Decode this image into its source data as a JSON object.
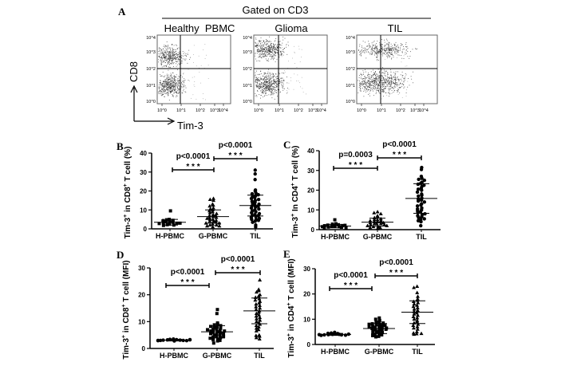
{
  "flow_panel": {
    "label": "A",
    "gate_title": "Gated on CD3",
    "plots": [
      {
        "title": "Healthy  PBMC"
      },
      {
        "title": "Glioma"
      },
      {
        "title": "TIL"
      }
    ],
    "y_axis_label": "CD8",
    "x_axis_label": "Tim-3",
    "tick_labels": [
      "10^0",
      "10^1",
      "10^2",
      "10^3",
      "10^4"
    ]
  },
  "chart_data": [
    {
      "panel": "B",
      "type": "scatter",
      "ylabel": "Tim-3+ in CD8+ T cell  (%)",
      "ylabel_parts": [
        "Tim-3",
        "+",
        " in CD8",
        "+",
        " T cell  (%)"
      ],
      "ylim": [
        0,
        40
      ],
      "yticks": [
        0,
        10,
        20,
        30,
        40
      ],
      "categories": [
        "H-PBMC",
        "G-PBMC",
        "TIL"
      ],
      "groups": [
        {
          "name": "H-PBMC",
          "marker": "square",
          "mean": 3.5,
          "sd": 1.5,
          "values": [
            9.5,
            5,
            4.8,
            4.5,
            4,
            3.8,
            3.5,
            3.2,
            3,
            2.8,
            2.5,
            2.2,
            2,
            1.8,
            3,
            4.2
          ]
        },
        {
          "name": "G-PBMC",
          "marker": "triangle",
          "mean": 6.5,
          "sd": 3.5,
          "values": [
            16,
            15.5,
            15,
            13,
            12.5,
            12,
            11,
            10.5,
            10,
            9.5,
            9,
            8.5,
            8,
            7.5,
            7,
            7,
            6.5,
            6,
            6,
            5.5,
            5,
            5,
            4.5,
            4,
            4,
            3.5,
            3,
            3,
            2.5,
            2,
            2,
            1.5,
            1.5,
            1
          ]
        },
        {
          "name": "TIL",
          "marker": "circle",
          "mean": 12.3,
          "sd": 5.5,
          "values": [
            31,
            29,
            26,
            20.5,
            20,
            19,
            18.5,
            18,
            17.5,
            17,
            16.5,
            16,
            15.5,
            15,
            14.5,
            14,
            13.5,
            13,
            12.5,
            12,
            12,
            11.5,
            11,
            10.5,
            10,
            9.5,
            9,
            8.5,
            8,
            7.5,
            7,
            7,
            6.5,
            6,
            5.5,
            5,
            5,
            4.5,
            4,
            3.5,
            2,
            1
          ]
        }
      ],
      "comparisons": [
        {
          "from": "H-PBMC",
          "to": "G-PBMC",
          "p": "p<0.0001",
          "stars": "* * *"
        },
        {
          "from": "G-PBMC",
          "to": "TIL",
          "p": "p<0.0001",
          "stars": "* * *"
        }
      ]
    },
    {
      "panel": "C",
      "type": "scatter",
      "ylabel": "Tim-3+ In CD4+ T cell  (%)",
      "ylabel_parts": [
        "Tim-3",
        "+",
        " In CD4",
        "+",
        " T cell  (%)"
      ],
      "ylim": [
        0,
        40
      ],
      "yticks": [
        0,
        10,
        20,
        30,
        40
      ],
      "categories": [
        "H-PBMC",
        "G-PBMC",
        "TIL"
      ],
      "groups": [
        {
          "name": "H-PBMC",
          "marker": "square",
          "mean": 1.8,
          "sd": 0.9,
          "values": [
            5,
            3,
            2.8,
            2.5,
            2.3,
            2,
            2,
            1.8,
            1.6,
            1.5,
            1.3,
            1.2,
            1,
            0.8,
            1.5,
            2.2
          ]
        },
        {
          "name": "G-PBMC",
          "marker": "triangle",
          "mean": 3.8,
          "sd": 2,
          "values": [
            9,
            8.5,
            8,
            7,
            6.5,
            6,
            5.5,
            5,
            5,
            4.5,
            4.5,
            4,
            4,
            4,
            3.5,
            3.5,
            3,
            3,
            3,
            2.5,
            2.5,
            2,
            2,
            1.5,
            1.5,
            1,
            1,
            0.5
          ]
        },
        {
          "name": "TIL",
          "marker": "circle",
          "mean": 15.8,
          "sd": 7.5,
          "values": [
            31.5,
            30.5,
            27,
            26,
            25.5,
            25,
            24,
            23.5,
            23,
            22.5,
            22,
            21,
            20.5,
            20,
            19,
            18,
            17.5,
            17,
            16,
            15.5,
            15,
            14.5,
            14,
            13,
            12.5,
            12,
            11,
            10.5,
            10,
            9.5,
            9,
            8.5,
            8,
            7.5,
            7,
            6.5,
            6,
            5.5,
            5,
            4.5,
            4,
            2
          ]
        }
      ],
      "comparisons": [
        {
          "from": "H-PBMC",
          "to": "G-PBMC",
          "p": "p=0.0003",
          "stars": "* * *"
        },
        {
          "from": "G-PBMC",
          "to": "TIL",
          "p": "p<0.0001",
          "stars": "* * *"
        }
      ]
    },
    {
      "panel": "D",
      "type": "scatter",
      "ylabel": "Tim-3+ in CD8+ T cell  (MFI)",
      "ylabel_parts": [
        "Tim-3",
        "+",
        " in CD8",
        "+",
        " T cell  (MFI)"
      ],
      "ylim": [
        0,
        30
      ],
      "yticks": [
        0,
        10,
        20,
        30
      ],
      "categories": [
        "H-PBMC",
        "G-PBMC",
        "TIL"
      ],
      "groups": [
        {
          "name": "H-PBMC",
          "marker": "circle",
          "mean": 3.1,
          "sd": 0.3,
          "values": [
            3.5,
            3.4,
            3.3,
            3.2,
            3.1,
            3.1,
            3,
            3,
            2.9,
            2.9,
            2.8,
            3.2,
            3,
            3.3
          ]
        },
        {
          "name": "G-PBMC",
          "marker": "square",
          "mean": 6.2,
          "sd": 2.3,
          "values": [
            14.5,
            13,
            9.5,
            9,
            8.8,
            8.5,
            8.2,
            8,
            7.8,
            7.5,
            7.2,
            7,
            6.8,
            6.5,
            6.2,
            6,
            5.8,
            5.5,
            5.2,
            5,
            4.8,
            4.5,
            4.2,
            4,
            3.8,
            3.5,
            3.2,
            3,
            2.8,
            2,
            6.5,
            7,
            5.5,
            4.5
          ]
        },
        {
          "name": "TIL",
          "marker": "triangle",
          "mean": 14,
          "sd": 4.8,
          "values": [
            25.5,
            22,
            21.5,
            21,
            20,
            19.5,
            19,
            18.5,
            18,
            17.5,
            17,
            16.5,
            16,
            15.5,
            15,
            14.5,
            14,
            13.5,
            13,
            12.5,
            12,
            11.5,
            11,
            10.5,
            10,
            9.5,
            9,
            8.5,
            8,
            7.5,
            7,
            6.5,
            5,
            4.8,
            4.5,
            4,
            3.5
          ]
        }
      ],
      "comparisons": [
        {
          "from": "H-PBMC",
          "to": "G-PBMC",
          "p": "p<0.0001",
          "stars": "* * *"
        },
        {
          "from": "G-PBMC",
          "to": "TIL",
          "p": "p<0.0001",
          "stars": "* * *"
        }
      ]
    },
    {
      "panel": "E",
      "type": "scatter",
      "ylabel": "Tim-3+ in CD4+ T cell  (MFI)",
      "ylabel_parts": [
        "Tim-3",
        "+",
        " in CD4",
        "+",
        " T cell  (MFI)"
      ],
      "ylim": [
        0,
        30
      ],
      "yticks": [
        0,
        10,
        20,
        30
      ],
      "categories": [
        "H-PBMC",
        "G-PBMC",
        "TIL"
      ],
      "groups": [
        {
          "name": "H-PBMC",
          "marker": "circle",
          "mean": 4,
          "sd": 0.4,
          "values": [
            4.8,
            4.5,
            4.3,
            4.2,
            4,
            4,
            3.9,
            3.8,
            3.8,
            3.7,
            3.6,
            4.1,
            4.4,
            3.9
          ]
        },
        {
          "name": "G-PBMC",
          "marker": "square",
          "mean": 6.3,
          "sd": 2,
          "values": [
            10.5,
            10,
            9.5,
            9,
            8.8,
            8.5,
            8.2,
            8,
            7.8,
            7.5,
            7.2,
            7,
            6.8,
            6.5,
            6.3,
            6,
            5.8,
            5.5,
            5.2,
            5,
            4.8,
            4.5,
            4.2,
            4,
            3.8,
            3.5,
            3.2,
            3,
            6.5,
            7,
            5.5,
            6,
            7.5,
            8
          ]
        },
        {
          "name": "TIL",
          "marker": "triangle",
          "mean": 12.8,
          "sd": 4.5,
          "values": [
            23,
            22.5,
            20.5,
            19,
            18,
            17.5,
            17,
            16.5,
            16,
            15.5,
            15,
            14.5,
            14,
            13.5,
            13,
            12.5,
            12,
            11.5,
            11,
            10.5,
            10,
            9.5,
            9,
            8.5,
            8,
            7.5,
            7,
            6.5,
            6,
            5,
            4.5,
            4.3,
            4.2,
            4
          ]
        }
      ],
      "comparisons": [
        {
          "from": "H-PBMC",
          "to": "G-PBMC",
          "p": "p<0.0001",
          "stars": "* * *"
        },
        {
          "from": "G-PBMC",
          "to": "TIL",
          "p": "p<0.0001",
          "stars": "* * *"
        }
      ]
    }
  ]
}
